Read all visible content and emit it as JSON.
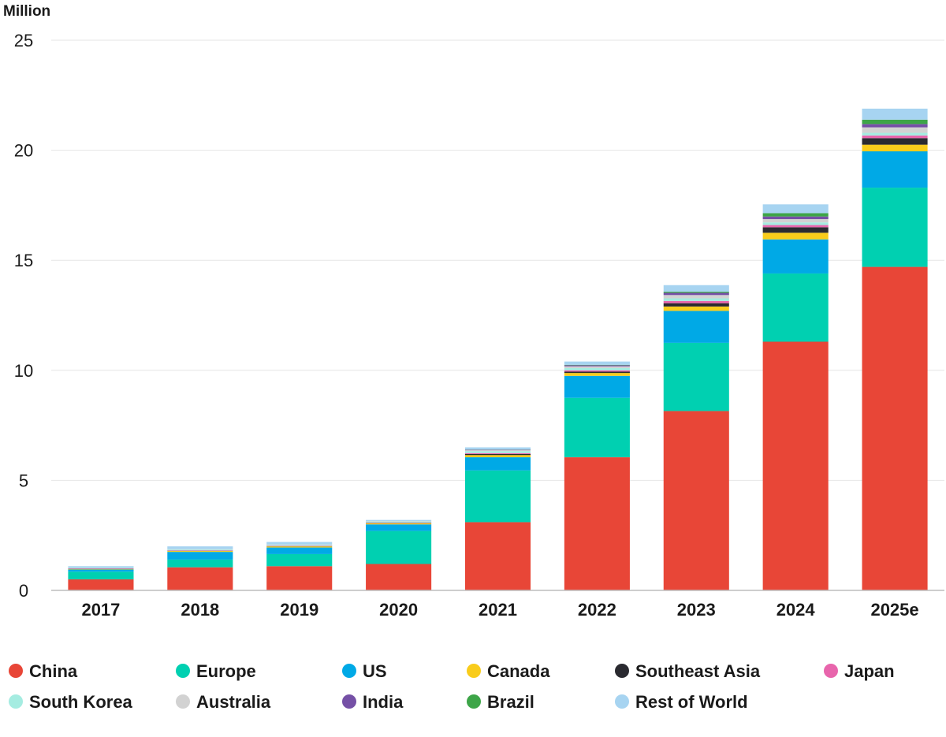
{
  "chart_data": {
    "type": "bar",
    "stacked": true,
    "ylabel": "Million",
    "ylim": [
      0,
      25
    ],
    "yticks": [
      0,
      5,
      10,
      15,
      20,
      25
    ],
    "grid": true,
    "legend_position": "bottom",
    "categories": [
      "2017",
      "2018",
      "2019",
      "2020",
      "2021",
      "2022",
      "2023",
      "2024",
      "2025e"
    ],
    "series": [
      {
        "name": "China",
        "color": "#e84637",
        "values": [
          0.5,
          1.05,
          1.1,
          1.2,
          3.1,
          6.05,
          8.15,
          11.3,
          14.7
        ]
      },
      {
        "name": "Europe",
        "color": "#00d0b1",
        "values": [
          0.35,
          0.35,
          0.55,
          1.5,
          2.35,
          2.7,
          3.1,
          3.1,
          3.6
        ]
      },
      {
        "name": "US",
        "color": "#00a9e6",
        "values": [
          0.1,
          0.35,
          0.3,
          0.3,
          0.6,
          1.0,
          1.45,
          1.55,
          1.65
        ]
      },
      {
        "name": "Canada",
        "color": "#f9cc1b",
        "values": [
          0.02,
          0.04,
          0.05,
          0.05,
          0.1,
          0.13,
          0.2,
          0.3,
          0.3
        ]
      },
      {
        "name": "Southeast Asia",
        "color": "#2a2a30",
        "values": [
          0.01,
          0.01,
          0.01,
          0.01,
          0.05,
          0.06,
          0.15,
          0.25,
          0.3
        ]
      },
      {
        "name": "Japan",
        "color": "#e865ac",
        "values": [
          0.02,
          0.02,
          0.02,
          0.02,
          0.04,
          0.06,
          0.1,
          0.1,
          0.12
        ]
      },
      {
        "name": "South Korea",
        "color": "#a5ece1",
        "values": [
          0.02,
          0.03,
          0.04,
          0.05,
          0.09,
          0.1,
          0.12,
          0.12,
          0.12
        ]
      },
      {
        "name": "Australia",
        "color": "#d2d2d2",
        "values": [
          0.01,
          0.02,
          0.02,
          0.02,
          0.04,
          0.08,
          0.15,
          0.15,
          0.25
        ]
      },
      {
        "name": "India",
        "color": "#7550a6",
        "values": [
          0.0,
          0.0,
          0.0,
          0.0,
          0.02,
          0.05,
          0.1,
          0.12,
          0.15
        ]
      },
      {
        "name": "Brazil",
        "color": "#3da548",
        "values": [
          0.0,
          0.0,
          0.0,
          0.0,
          0.01,
          0.02,
          0.05,
          0.15,
          0.2
        ]
      },
      {
        "name": "Rest of World",
        "color": "#a7d4f1",
        "values": [
          0.07,
          0.13,
          0.11,
          0.05,
          0.1,
          0.15,
          0.3,
          0.4,
          0.5
        ]
      }
    ]
  }
}
